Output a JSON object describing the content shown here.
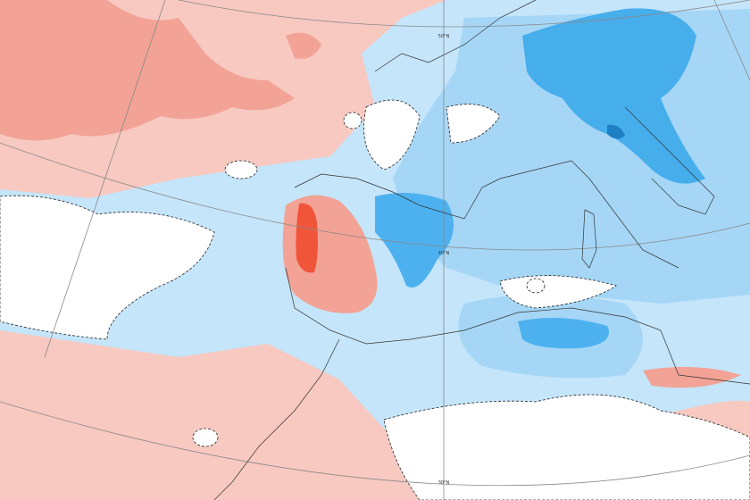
{
  "map": {
    "graticule_labels": [
      "50°N",
      "40°N",
      "30°N"
    ]
  }
}
